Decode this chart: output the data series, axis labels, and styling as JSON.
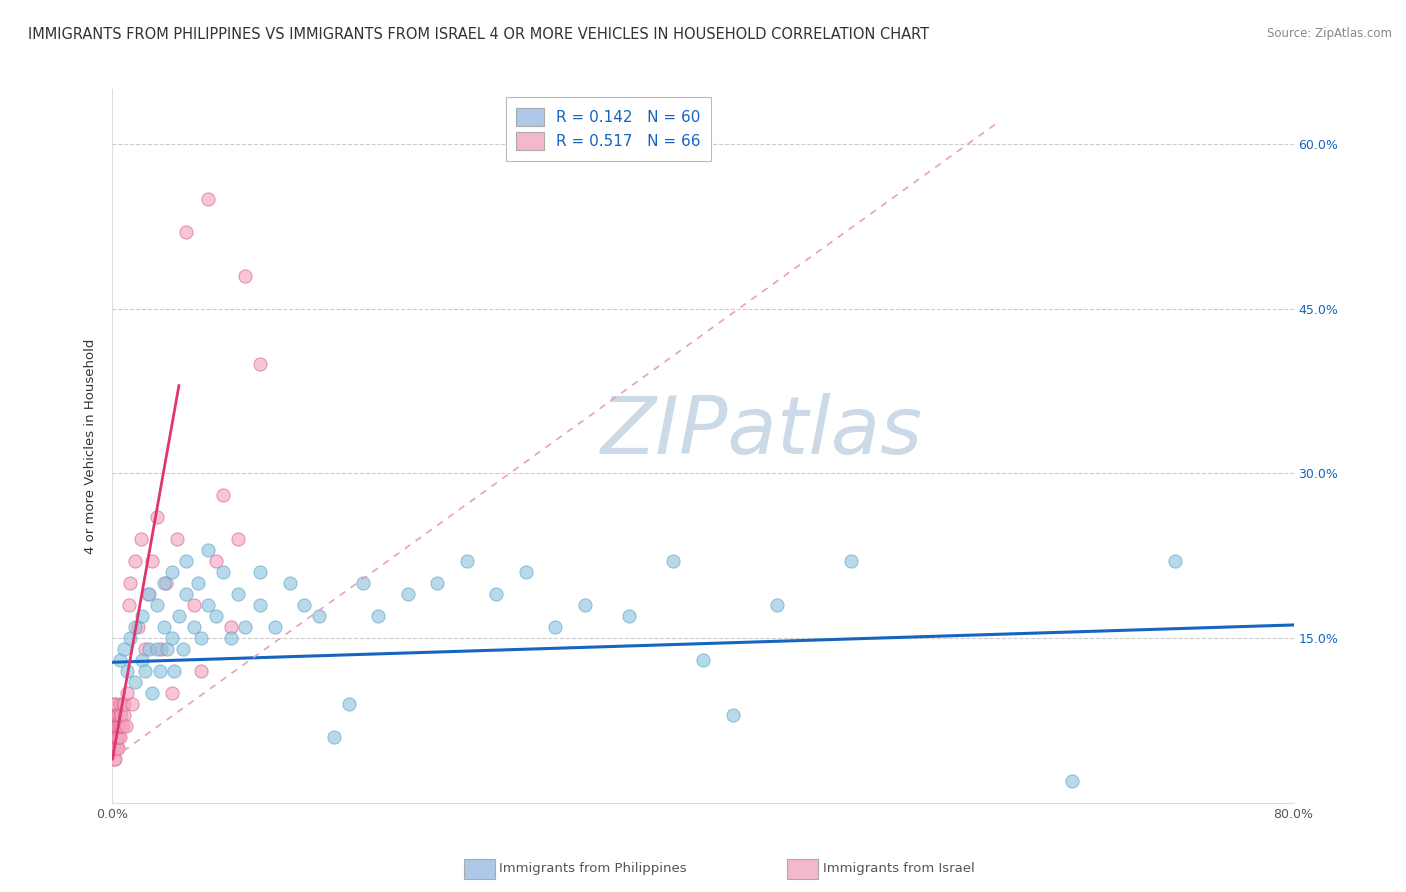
{
  "title": "IMMIGRANTS FROM PHILIPPINES VS IMMIGRANTS FROM ISRAEL 4 OR MORE VEHICLES IN HOUSEHOLD CORRELATION CHART",
  "source": "Source: ZipAtlas.com",
  "ylabel": "4 or more Vehicles in Household",
  "watermark": "ZIPatlas",
  "xlim": [
    0.0,
    0.8
  ],
  "ylim": [
    0.0,
    0.65
  ],
  "xticks": [
    0.0,
    0.1,
    0.2,
    0.3,
    0.4,
    0.5,
    0.6,
    0.7,
    0.8
  ],
  "xtick_labels": [
    "0.0%",
    "",
    "",
    "",
    "",
    "",
    "",
    "",
    "80.0%"
  ],
  "yticks": [
    0.0,
    0.15,
    0.3,
    0.45,
    0.6
  ],
  "ytick_labels": [
    "",
    "",
    "",
    "",
    ""
  ],
  "right_ytick_labels": [
    "15.0%",
    "30.0%",
    "45.0%",
    "60.0%"
  ],
  "right_yticks": [
    0.15,
    0.3,
    0.45,
    0.6
  ],
  "legend_blue": "R = 0.142   N = 60",
  "legend_pink": "R = 0.517   N = 66",
  "series_blue": {
    "name": "Immigrants from Philippines",
    "color": "#92c5de",
    "edge_color": "#5ba3c9",
    "alpha": 0.65,
    "x": [
      0.005,
      0.008,
      0.01,
      0.012,
      0.015,
      0.015,
      0.02,
      0.02,
      0.022,
      0.025,
      0.025,
      0.027,
      0.03,
      0.03,
      0.032,
      0.035,
      0.035,
      0.037,
      0.04,
      0.04,
      0.042,
      0.045,
      0.048,
      0.05,
      0.05,
      0.055,
      0.058,
      0.06,
      0.065,
      0.065,
      0.07,
      0.075,
      0.08,
      0.085,
      0.09,
      0.1,
      0.1,
      0.11,
      0.12,
      0.13,
      0.14,
      0.15,
      0.16,
      0.17,
      0.18,
      0.2,
      0.22,
      0.24,
      0.26,
      0.28,
      0.3,
      0.32,
      0.35,
      0.38,
      0.4,
      0.42,
      0.45,
      0.5,
      0.65,
      0.72
    ],
    "y": [
      0.13,
      0.14,
      0.12,
      0.15,
      0.11,
      0.16,
      0.13,
      0.17,
      0.12,
      0.14,
      0.19,
      0.1,
      0.14,
      0.18,
      0.12,
      0.16,
      0.2,
      0.14,
      0.15,
      0.21,
      0.12,
      0.17,
      0.14,
      0.19,
      0.22,
      0.16,
      0.2,
      0.15,
      0.18,
      0.23,
      0.17,
      0.21,
      0.15,
      0.19,
      0.16,
      0.18,
      0.21,
      0.16,
      0.2,
      0.18,
      0.17,
      0.06,
      0.09,
      0.2,
      0.17,
      0.19,
      0.2,
      0.22,
      0.19,
      0.21,
      0.16,
      0.18,
      0.17,
      0.22,
      0.13,
      0.08,
      0.18,
      0.22,
      0.02,
      0.22
    ]
  },
  "series_pink": {
    "name": "Immigrants from Israel",
    "color": "#f4a6c0",
    "edge_color": "#d4608a",
    "alpha": 0.65,
    "x": [
      0.001,
      0.001,
      0.001,
      0.001,
      0.001,
      0.001,
      0.001,
      0.001,
      0.001,
      0.001,
      0.002,
      0.002,
      0.002,
      0.002,
      0.002,
      0.002,
      0.002,
      0.002,
      0.002,
      0.002,
      0.003,
      0.003,
      0.003,
      0.003,
      0.003,
      0.003,
      0.004,
      0.004,
      0.004,
      0.004,
      0.005,
      0.005,
      0.005,
      0.005,
      0.006,
      0.006,
      0.007,
      0.007,
      0.008,
      0.008,
      0.009,
      0.01,
      0.011,
      0.012,
      0.013,
      0.015,
      0.017,
      0.019,
      0.022,
      0.024,
      0.027,
      0.03,
      0.033,
      0.036,
      0.04,
      0.044,
      0.05,
      0.055,
      0.06,
      0.065,
      0.07,
      0.075,
      0.08,
      0.085,
      0.09,
      0.1
    ],
    "y": [
      0.04,
      0.05,
      0.05,
      0.06,
      0.06,
      0.07,
      0.07,
      0.08,
      0.08,
      0.09,
      0.04,
      0.05,
      0.05,
      0.06,
      0.06,
      0.07,
      0.07,
      0.08,
      0.08,
      0.09,
      0.05,
      0.06,
      0.06,
      0.07,
      0.07,
      0.08,
      0.05,
      0.06,
      0.07,
      0.08,
      0.06,
      0.07,
      0.08,
      0.09,
      0.07,
      0.08,
      0.07,
      0.09,
      0.08,
      0.09,
      0.07,
      0.1,
      0.18,
      0.2,
      0.09,
      0.22,
      0.16,
      0.24,
      0.14,
      0.19,
      0.22,
      0.26,
      0.14,
      0.2,
      0.1,
      0.24,
      0.52,
      0.18,
      0.12,
      0.55,
      0.22,
      0.28,
      0.16,
      0.24,
      0.48,
      0.4
    ]
  },
  "blue_line": {
    "x": [
      0.0,
      0.8
    ],
    "y": [
      0.128,
      0.162
    ],
    "color": "#1565c0",
    "linewidth": 2.2
  },
  "pink_line_solid": {
    "x": [
      0.0,
      0.045
    ],
    "y": [
      0.04,
      0.38
    ],
    "color": "#e0366e",
    "linewidth": 2.0
  },
  "pink_line_dashed": {
    "x": [
      0.0,
      0.6
    ],
    "y": [
      0.04,
      0.62
    ],
    "color": "#e8a0b8",
    "linewidth": 1.2,
    "dash": [
      4,
      4
    ]
  },
  "background_color": "#ffffff",
  "grid_color": "#cccccc",
  "title_fontsize": 10.5,
  "axis_label_fontsize": 9.5,
  "tick_fontsize": 9,
  "legend_fontsize": 11,
  "watermark_color": "#ccdae8",
  "watermark_fontsize": 58
}
